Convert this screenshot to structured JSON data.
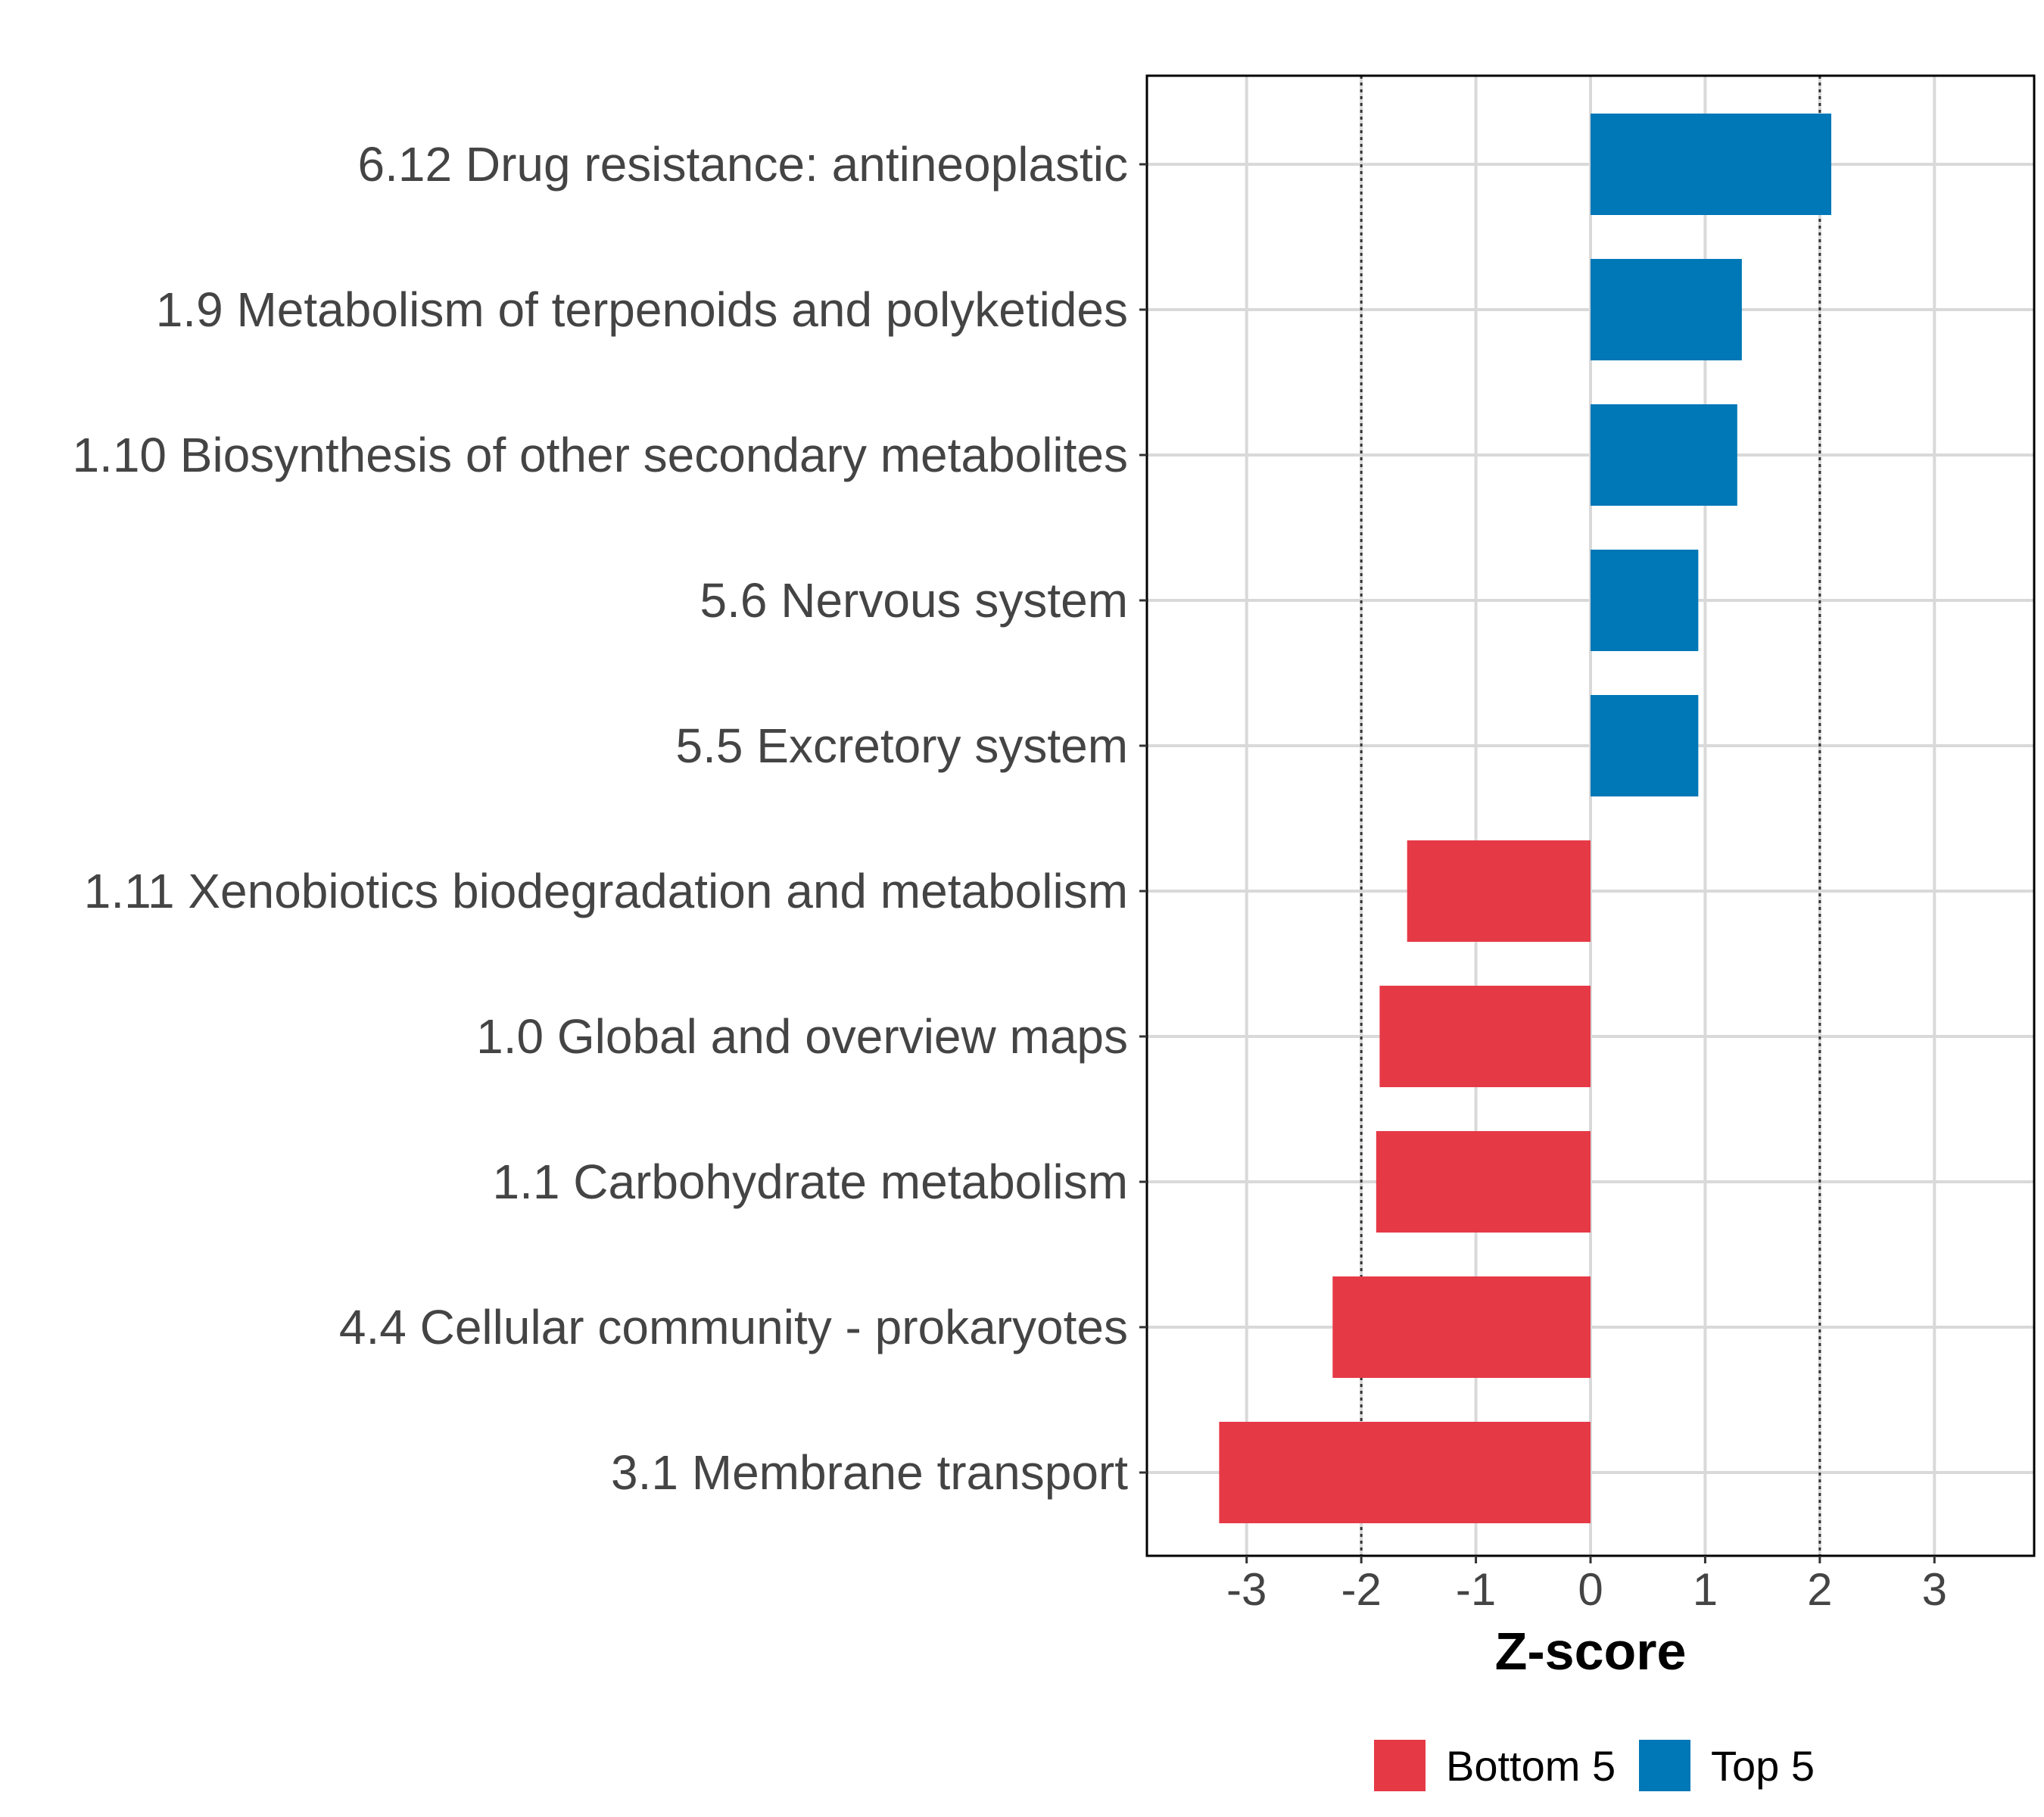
{
  "chart_data": {
    "type": "bar",
    "orientation": "horizontal",
    "categories": [
      "6.12 Drug resistance: antineoplastic",
      "1.9 Metabolism of terpenoids and polyketides",
      "1.10 Biosynthesis of other secondary metabolites",
      "5.6 Nervous system",
      "5.5 Excretory system",
      "1.11 Xenobiotics biodegradation and metabolism",
      "1.0 Global and overview maps",
      "1.1 Carbohydrate metabolism",
      "4.4 Cellular community - prokaryotes",
      "3.1 Membrane transport"
    ],
    "values": [
      2.1,
      1.32,
      1.28,
      0.94,
      0.94,
      -1.6,
      -1.84,
      -1.87,
      -2.25,
      -3.24
    ],
    "groups": [
      "Top 5",
      "Top 5",
      "Top 5",
      "Top 5",
      "Top 5",
      "Bottom 5",
      "Bottom 5",
      "Bottom 5",
      "Bottom 5",
      "Bottom 5"
    ],
    "xlabel": "Z-score",
    "ylabel": "",
    "xlim": [
      -3.87,
      3.87
    ],
    "xticks": [
      -3,
      -2,
      -1,
      0,
      1,
      2,
      3
    ],
    "xtick_labels": [
      "-3",
      "-2",
      "-1",
      "0",
      "1",
      "2",
      "3"
    ],
    "reference_lines": [
      -2,
      2
    ],
    "grid": true,
    "legend": {
      "placement": "bottom",
      "entries": [
        {
          "label": "Bottom 5",
          "color": "#E63946"
        },
        {
          "label": "Top 5",
          "color": "#0077B6"
        }
      ]
    },
    "colors": {
      "Bottom 5": "#E63946",
      "Top 5": "#0077B6"
    }
  }
}
